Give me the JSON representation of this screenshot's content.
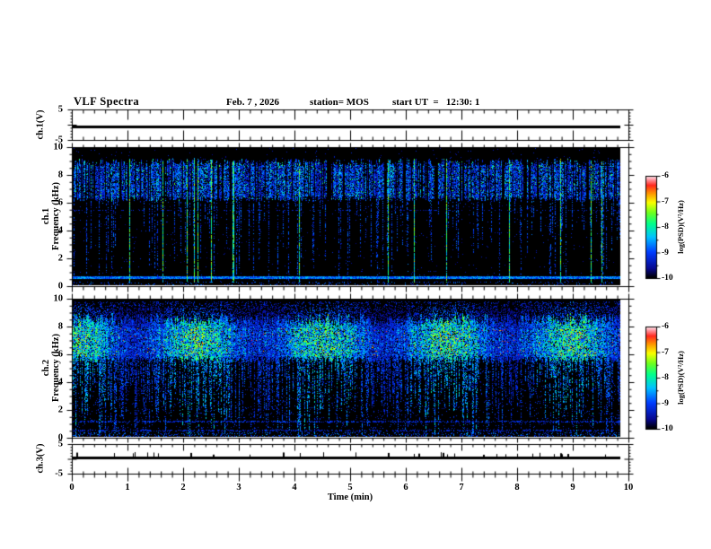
{
  "header": {
    "title": "VLF Spectra",
    "date": "Feb. 7 , 2026",
    "station": "station= MOS",
    "start_ut": "start UT  =   12:30: 1"
  },
  "panels": {
    "ch1_wave": {
      "label": "ch.1(V)",
      "yticks": [
        "5",
        "-5"
      ]
    },
    "ch1_spec": {
      "label_line1": "ch.1",
      "label_line2": "Frequency (kHz)",
      "yticks": [
        "10",
        "8",
        "6",
        "4",
        "2",
        "0"
      ]
    },
    "ch2_spec": {
      "label_line1": "ch.2",
      "label_line2": "Frequency (kHz)",
      "yticks": [
        "10",
        "8",
        "6",
        "4",
        "2",
        "0"
      ]
    },
    "ch3_wave": {
      "label": "ch.3(V)",
      "yticks": [
        "5",
        "-5"
      ]
    }
  },
  "xaxis": {
    "label": "Time (min)",
    "ticks": [
      "0",
      "1",
      "2",
      "3",
      "4",
      "5",
      "6",
      "7",
      "8",
      "9",
      "10"
    ]
  },
  "colorbar": {
    "label": "log(PSD)(V²/Hz)",
    "ticks": [
      "-6",
      "-7",
      "-8",
      "-9",
      "-10"
    ]
  },
  "colors": {
    "background": "#ffffff",
    "spectrogram_background": "#000000",
    "text": "#000000",
    "colormap": [
      "#000000",
      "#000890",
      "#003cff",
      "#00c3ff",
      "#00ff8c",
      "#6eff1e",
      "#faff00",
      "#ff9600",
      "#ff281e",
      "#ffebf0"
    ]
  },
  "chart_data": [
    {
      "type": "line",
      "title": "ch.1(V) waveform",
      "xlabel": "Time (min)",
      "ylabel": "ch.1(V)",
      "xlim": [
        0,
        10
      ],
      "ylim": [
        -5,
        5
      ],
      "series": [
        {
          "name": "ch.1 voltage",
          "summary": "flat constant trace at ~0 V from 0 to ~9.85 min"
        }
      ]
    },
    {
      "type": "heatmap",
      "title": "ch.1 VLF spectrogram",
      "xlabel": "Time (min)",
      "ylabel": "ch.1 Frequency (kHz)",
      "xlim": [
        0,
        10
      ],
      "ylim": [
        0,
        10
      ],
      "colorbar_label": "log(PSD)(V²/Hz)",
      "zlim": [
        -10,
        -6
      ],
      "features": [
        "black background (PSD near -10)",
        "dense band of impulsive blue/cyan vertical streaks between ~6.3 and ~9.2 kHz",
        "sparser weak vertical streaks extending below 6 kHz toward 0 kHz",
        "a dozen brighter green/yellow streaks spanning nearly the full 0-9 kHz height",
        "continuous faint blue horizontal line near 0.5 kHz",
        "faint dotted horizontal line near 5.4 kHz and speckle near 0 kHz"
      ]
    },
    {
      "type": "heatmap",
      "title": "ch.2 VLF spectrogram",
      "xlabel": "Time (min)",
      "ylabel": "ch.2 Frequency (kHz)",
      "xlim": [
        0,
        10
      ],
      "ylim": [
        0,
        10
      ],
      "colorbar_label": "log(PSD)(V²/Hz)",
      "zlim": [
        -10,
        -6
      ],
      "features": [
        "intense continuous band ~5.5-8.5 kHz with green/yellow core and sporadic orange/red peaks near 6-8 kHz",
        "frequent blue/cyan/green vertical streaks extending down to 1-4 kHz, some reaching 0 kHz",
        "sparse blue speckle above ~9 kHz",
        "mostly black below ~1.5 kHz with faint horizontal lines near 1 and 0.5 kHz"
      ]
    },
    {
      "type": "line",
      "title": "ch.3(V) waveform",
      "xlabel": "Time (min)",
      "ylabel": "ch.3(V)",
      "xlim": [
        0,
        10
      ],
      "ylim": [
        -5,
        5
      ],
      "series": [
        {
          "name": "ch.3 voltage",
          "summary": "flat constant trace at ~0 V with tiny upward noise spikes"
        }
      ]
    }
  ]
}
